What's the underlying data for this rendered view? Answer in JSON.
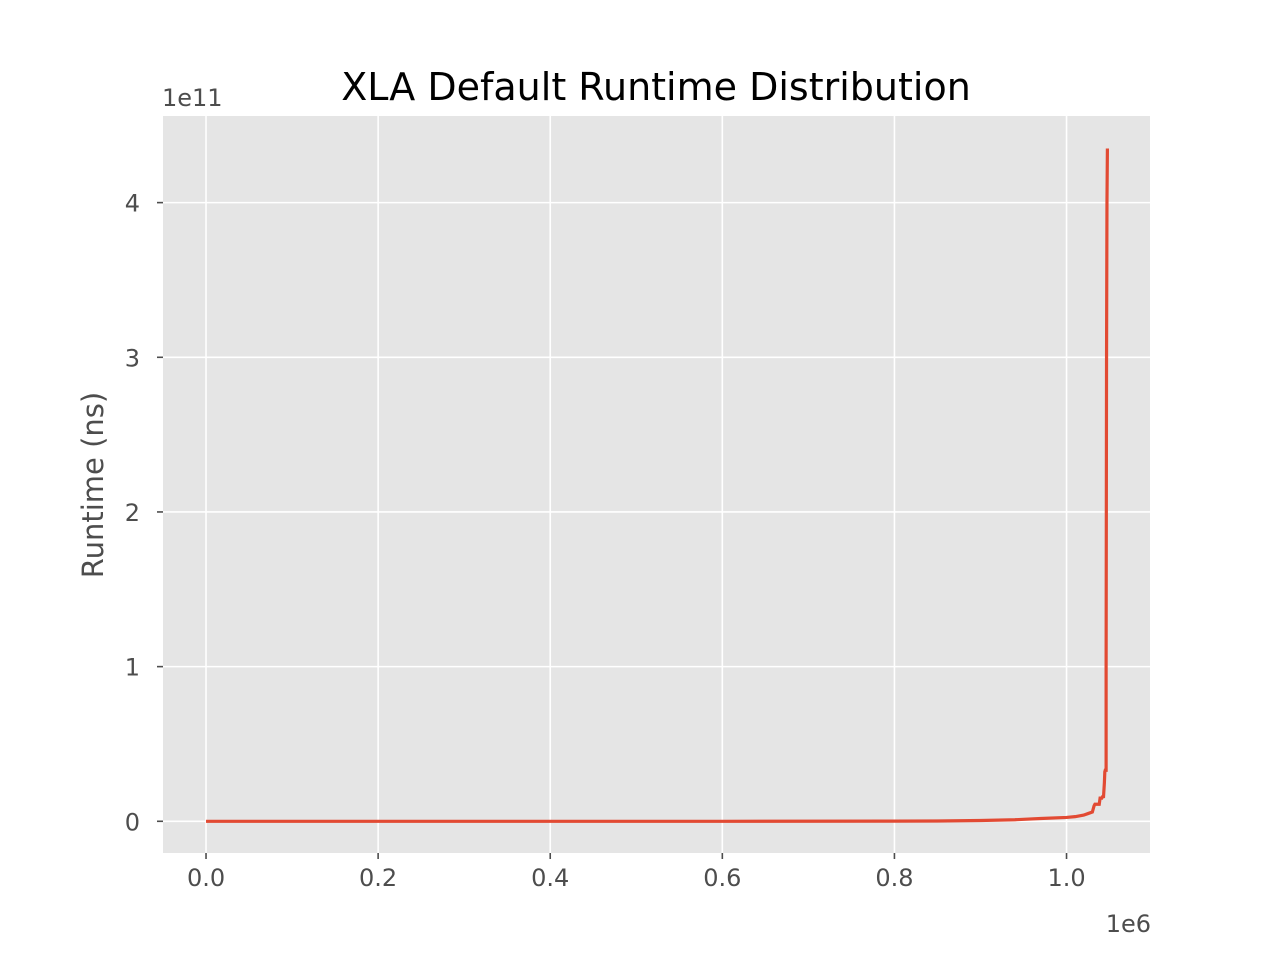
{
  "chart_data": {
    "type": "line",
    "title": "XLA Default Runtime Distribution",
    "xlabel": "",
    "ylabel": "Runtime (ns)",
    "x_offset_label": "1e6",
    "y_offset_label": "1e11",
    "xlim": [
      -50000,
      1097000
    ],
    "ylim": [
      -20500000000.0,
      456000000000.0
    ],
    "x_ticks": [
      0,
      200000,
      400000,
      600000,
      800000,
      1000000
    ],
    "x_tick_labels": [
      "0.0",
      "0.2",
      "0.4",
      "0.6",
      "0.8",
      "1.0"
    ],
    "y_ticks": [
      0,
      100000000000.0,
      200000000000.0,
      300000000000.0,
      400000000000.0
    ],
    "y_tick_labels": [
      "0",
      "1",
      "2",
      "3",
      "4"
    ],
    "grid": true,
    "colors": {
      "background": "#e5e5e5",
      "grid": "#ffffff",
      "line": "#e24a33"
    },
    "series": [
      {
        "x": [
          0,
          200000,
          400000,
          600000,
          800000,
          850000,
          900000,
          940000,
          970000,
          1000000,
          1010000,
          1020000,
          1025000,
          1030000,
          1032000,
          1033000,
          1038000,
          1039000,
          1041000,
          1042000,
          1043000,
          1044000,
          1044500,
          1045000,
          1046000,
          1046000,
          1046500,
          1047000,
          1047500
        ],
        "y": [
          0,
          0,
          0,
          0,
          100000000,
          200000000,
          500000000,
          1000000000,
          1800000000,
          2500000000,
          3000000000,
          4000000000,
          5000000000,
          6000000000,
          10000000000,
          11000000000,
          11000000000,
          15000000000,
          15000000000,
          16000000000,
          16000000000,
          25000000000,
          32000000000,
          33000000000,
          33000000000,
          100000000000,
          300000000000,
          400000000000,
          435000000000
        ]
      }
    ]
  }
}
